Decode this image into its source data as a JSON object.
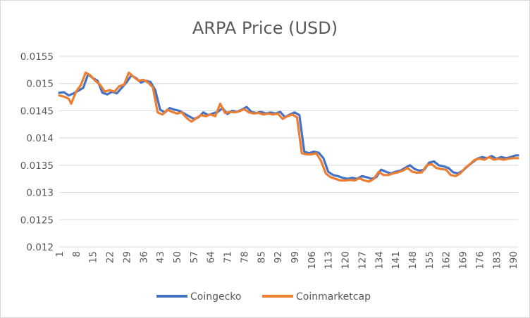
{
  "chart_data": {
    "type": "line",
    "title": "ARPA Price (USD)",
    "xlabel": "",
    "ylabel": "",
    "ylim": [
      0.012,
      0.0155
    ],
    "y_ticks": [
      "0.012",
      "0.0125",
      "0.013",
      "0.0135",
      "0.014",
      "0.0145",
      "0.015",
      "0.0155"
    ],
    "x_range": [
      1,
      192
    ],
    "x_ticks": [
      1,
      8,
      15,
      22,
      29,
      36,
      43,
      50,
      57,
      64,
      71,
      78,
      85,
      92,
      99,
      106,
      113,
      120,
      127,
      134,
      141,
      148,
      155,
      162,
      169,
      176,
      183,
      190
    ],
    "grid": true,
    "legend_position": "bottom",
    "series": [
      {
        "name": "Coingecko",
        "color": "#4472C4",
        "points": [
          [
            1,
            0.01483
          ],
          [
            3,
            0.01484
          ],
          [
            5,
            0.01478
          ],
          [
            7,
            0.01482
          ],
          [
            9,
            0.01487
          ],
          [
            11,
            0.01492
          ],
          [
            13,
            0.01517
          ],
          [
            15,
            0.0151
          ],
          [
            17,
            0.01505
          ],
          [
            19,
            0.01483
          ],
          [
            21,
            0.0148
          ],
          [
            23,
            0.01485
          ],
          [
            25,
            0.01482
          ],
          [
            27,
            0.01492
          ],
          [
            29,
            0.01502
          ],
          [
            31,
            0.01515
          ],
          [
            33,
            0.0151
          ],
          [
            35,
            0.01502
          ],
          [
            37,
            0.01505
          ],
          [
            39,
            0.01503
          ],
          [
            41,
            0.01488
          ],
          [
            43,
            0.01452
          ],
          [
            45,
            0.01447
          ],
          [
            47,
            0.01455
          ],
          [
            49,
            0.01452
          ],
          [
            51,
            0.0145
          ],
          [
            53,
            0.01445
          ],
          [
            55,
            0.0144
          ],
          [
            57,
            0.01435
          ],
          [
            59,
            0.01438
          ],
          [
            61,
            0.01447
          ],
          [
            63,
            0.01442
          ],
          [
            65,
            0.01445
          ],
          [
            67,
            0.01448
          ],
          [
            69,
            0.01455
          ],
          [
            71,
            0.01444
          ],
          [
            73,
            0.0145
          ],
          [
            75,
            0.01448
          ],
          [
            77,
            0.01452
          ],
          [
            79,
            0.01457
          ],
          [
            81,
            0.01448
          ],
          [
            83,
            0.01446
          ],
          [
            85,
            0.01448
          ],
          [
            87,
            0.01445
          ],
          [
            89,
            0.01447
          ],
          [
            91,
            0.01445
          ],
          [
            93,
            0.01448
          ],
          [
            95,
            0.01438
          ],
          [
            97,
            0.01443
          ],
          [
            99,
            0.01447
          ],
          [
            101,
            0.01442
          ],
          [
            103,
            0.01375
          ],
          [
            105,
            0.01372
          ],
          [
            107,
            0.01375
          ],
          [
            109,
            0.01373
          ],
          [
            111,
            0.01363
          ],
          [
            113,
            0.01338
          ],
          [
            115,
            0.01332
          ],
          [
            117,
            0.0133
          ],
          [
            119,
            0.01327
          ],
          [
            121,
            0.01325
          ],
          [
            123,
            0.01327
          ],
          [
            125,
            0.01325
          ],
          [
            127,
            0.0133
          ],
          [
            129,
            0.01328
          ],
          [
            131,
            0.01325
          ],
          [
            133,
            0.01328
          ],
          [
            135,
            0.01342
          ],
          [
            137,
            0.01338
          ],
          [
            139,
            0.01335
          ],
          [
            141,
            0.01338
          ],
          [
            143,
            0.0134
          ],
          [
            145,
            0.01345
          ],
          [
            147,
            0.0135
          ],
          [
            149,
            0.01343
          ],
          [
            151,
            0.0134
          ],
          [
            153,
            0.01342
          ],
          [
            155,
            0.01355
          ],
          [
            157,
            0.01357
          ],
          [
            159,
            0.0135
          ],
          [
            161,
            0.01348
          ],
          [
            163,
            0.01345
          ],
          [
            165,
            0.01337
          ],
          [
            167,
            0.01335
          ],
          [
            169,
            0.0134
          ],
          [
            171,
            0.01348
          ],
          [
            173,
            0.01355
          ],
          [
            175,
            0.01362
          ],
          [
            177,
            0.01365
          ],
          [
            179,
            0.01363
          ],
          [
            181,
            0.01367
          ],
          [
            183,
            0.01362
          ],
          [
            185,
            0.01365
          ],
          [
            187,
            0.01363
          ],
          [
            189,
            0.01365
          ],
          [
            191,
            0.01368
          ],
          [
            192,
            0.01368
          ]
        ]
      },
      {
        "name": "Coinmarketcap",
        "color": "#ED7D31",
        "points": [
          [
            1,
            0.01478
          ],
          [
            3,
            0.01476
          ],
          [
            5,
            0.01472
          ],
          [
            6,
            0.01463
          ],
          [
            8,
            0.01485
          ],
          [
            10,
            0.01497
          ],
          [
            12,
            0.0152
          ],
          [
            14,
            0.01515
          ],
          [
            16,
            0.01505
          ],
          [
            18,
            0.01498
          ],
          [
            20,
            0.01485
          ],
          [
            22,
            0.01488
          ],
          [
            24,
            0.01485
          ],
          [
            26,
            0.01495
          ],
          [
            28,
            0.01498
          ],
          [
            30,
            0.0152
          ],
          [
            32,
            0.01512
          ],
          [
            34,
            0.01505
          ],
          [
            36,
            0.01507
          ],
          [
            38,
            0.01502
          ],
          [
            40,
            0.01493
          ],
          [
            42,
            0.01447
          ],
          [
            44,
            0.01443
          ],
          [
            46,
            0.01452
          ],
          [
            48,
            0.01448
          ],
          [
            50,
            0.01445
          ],
          [
            52,
            0.01447
          ],
          [
            54,
            0.01437
          ],
          [
            56,
            0.0143
          ],
          [
            58,
            0.01436
          ],
          [
            60,
            0.01442
          ],
          [
            62,
            0.0144
          ],
          [
            64,
            0.01443
          ],
          [
            66,
            0.0144
          ],
          [
            68,
            0.01463
          ],
          [
            70,
            0.01446
          ],
          [
            72,
            0.01448
          ],
          [
            74,
            0.01447
          ],
          [
            76,
            0.01449
          ],
          [
            78,
            0.01453
          ],
          [
            80,
            0.01447
          ],
          [
            82,
            0.01445
          ],
          [
            84,
            0.01446
          ],
          [
            86,
            0.01443
          ],
          [
            88,
            0.01445
          ],
          [
            90,
            0.01443
          ],
          [
            92,
            0.01445
          ],
          [
            94,
            0.01435
          ],
          [
            96,
            0.0144
          ],
          [
            98,
            0.01443
          ],
          [
            100,
            0.01438
          ],
          [
            102,
            0.01372
          ],
          [
            104,
            0.0137
          ],
          [
            106,
            0.0137
          ],
          [
            108,
            0.01372
          ],
          [
            110,
            0.01358
          ],
          [
            112,
            0.01335
          ],
          [
            114,
            0.01328
          ],
          [
            116,
            0.01325
          ],
          [
            118,
            0.01322
          ],
          [
            120,
            0.01322
          ],
          [
            122,
            0.01323
          ],
          [
            124,
            0.01322
          ],
          [
            126,
            0.01326
          ],
          [
            128,
            0.01322
          ],
          [
            130,
            0.0132
          ],
          [
            132,
            0.01325
          ],
          [
            134,
            0.01338
          ],
          [
            136,
            0.01332
          ],
          [
            138,
            0.01332
          ],
          [
            140,
            0.01335
          ],
          [
            142,
            0.01337
          ],
          [
            144,
            0.0134
          ],
          [
            146,
            0.01345
          ],
          [
            148,
            0.01338
          ],
          [
            150,
            0.01336
          ],
          [
            152,
            0.01337
          ],
          [
            154,
            0.0135
          ],
          [
            156,
            0.01352
          ],
          [
            158,
            0.01345
          ],
          [
            160,
            0.01343
          ],
          [
            162,
            0.01342
          ],
          [
            164,
            0.01332
          ],
          [
            166,
            0.0133
          ],
          [
            168,
            0.01335
          ],
          [
            170,
            0.01345
          ],
          [
            172,
            0.01352
          ],
          [
            174,
            0.0136
          ],
          [
            176,
            0.01362
          ],
          [
            178,
            0.0136
          ],
          [
            180,
            0.01365
          ],
          [
            182,
            0.0136
          ],
          [
            184,
            0.01362
          ],
          [
            186,
            0.0136
          ],
          [
            188,
            0.01362
          ],
          [
            190,
            0.01363
          ],
          [
            192,
            0.01363
          ]
        ]
      }
    ]
  }
}
